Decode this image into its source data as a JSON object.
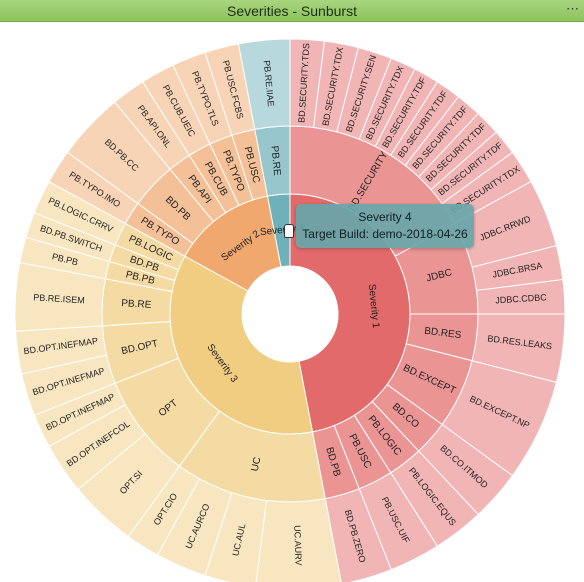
{
  "panel": {
    "title": "Severities - Sunburst",
    "menu_icon": "ellipsis-icon"
  },
  "tooltip": {
    "line1": "Severity 4",
    "line2": "Target Build: demo-2018-04-26"
  },
  "colors": {
    "header": "#9ccb72",
    "severity_1": "#e26a6a",
    "severity_2": "#f0a86e",
    "severity_3": "#f0cd80",
    "severity_4": "#6fb1ba"
  },
  "chart_data": {
    "type": "sunburst",
    "title": "Severities - Sunburst",
    "hierarchy": [
      {
        "name": "Severity 1",
        "value": 47,
        "children": [
          {
            "name": "BD.SECURITY",
            "value": 17,
            "children": [
              {
                "name": "BD.SECURITY.TDS",
                "value": 2
              },
              {
                "name": "BD.SECURITY.TDX",
                "value": 2
              },
              {
                "name": "BD.SECURITY.SEN",
                "value": 2
              },
              {
                "name": "BD.SECURITY.TDX",
                "value": 1.5
              },
              {
                "name": "BD.SECURITY.TDF",
                "value": 1.5
              },
              {
                "name": "BD.SECURITY.TDF",
                "value": 1.5
              },
              {
                "name": "BD.SECURITY.TDF",
                "value": 1.5
              },
              {
                "name": "BD.SECURITY.TDF",
                "value": 1.5
              },
              {
                "name": "BD.SECURITY.TDF",
                "value": 1.5
              },
              {
                "name": "BD.SECURITY.TDX",
                "value": 2
              }
            ]
          },
          {
            "name": "JDBC",
            "value": 8,
            "children": [
              {
                "name": "JDBC.RRWD",
                "value": 4
              },
              {
                "name": "JDBC.BRSA",
                "value": 2
              },
              {
                "name": "JDBC.CDBC",
                "value": 2
              }
            ]
          },
          {
            "name": "BD.RES",
            "value": 4,
            "children": [
              {
                "name": "BD.RES.LEAKS",
                "value": 4
              }
            ]
          },
          {
            "name": "BD.EXCEPT",
            "value": 6,
            "children": [
              {
                "name": "BD.EXCEPT.NP",
                "value": 6
              }
            ]
          },
          {
            "name": "BD.CO",
            "value": 3,
            "children": [
              {
                "name": "BD.CO.ITMOD",
                "value": 3
              }
            ]
          },
          {
            "name": "PB.LOGIC",
            "value": 3,
            "children": [
              {
                "name": "PB.LOGIC.EQUS",
                "value": 3
              }
            ]
          },
          {
            "name": "PB.USC",
            "value": 3,
            "children": [
              {
                "name": "PB.USC.UIF",
                "value": 3
              }
            ]
          },
          {
            "name": "BD.PB",
            "value": 3,
            "children": [
              {
                "name": "BD.PB.ZERO",
                "value": 3
              }
            ]
          }
        ]
      },
      {
        "name": "Severity 3",
        "value": 36,
        "children": [
          {
            "name": "UC",
            "value": 13,
            "children": [
              {
                "name": "UC.AURV",
                "value": 5
              },
              {
                "name": "UC.AUL",
                "value": 3
              },
              {
                "name": "UC.AURCO",
                "value": 3
              },
              {
                "name": "OPT.CIO",
                "value": 2
              }
            ]
          },
          {
            "name": "OPT",
            "value": 9,
            "children": [
              {
                "name": "OPT.SI",
                "value": 4
              },
              {
                "name": "BD.OPT.INEFCOL",
                "value": 3
              },
              {
                "name": "BD.OPT.INEFMAP",
                "value": 2
              }
            ]
          },
          {
            "name": "BD.OPT",
            "value": 5,
            "children": [
              {
                "name": "BD.OPT.INEFMAP",
                "value": 2.5
              },
              {
                "name": "BD.OPT.INEFMAP",
                "value": 2.5
              }
            ]
          },
          {
            "name": "PB.RE",
            "value": 4,
            "children": [
              {
                "name": "PB.RE.ISEM",
                "value": 4
              }
            ]
          },
          {
            "name": "PB.PB",
            "value": 1.5,
            "children": [
              {
                "name": "PB.PB",
                "value": 1.5
              }
            ]
          },
          {
            "name": "BD.PB",
            "value": 1.5,
            "children": [
              {
                "name": "BD.PB.SWITCH",
                "value": 1.5
              }
            ]
          },
          {
            "name": "PB.LOGIC",
            "value": 2,
            "children": [
              {
                "name": "PB.LOGIC.CRRV",
                "value": 2
              }
            ]
          }
        ]
      },
      {
        "name": "Severity 2",
        "value": 14,
        "children": [
          {
            "name": "PB.TYPO",
            "value": 2,
            "children": [
              {
                "name": "PB.TYPO.IMO",
                "value": 2
              }
            ]
          },
          {
            "name": "BD.PB",
            "value": 4,
            "children": [
              {
                "name": "BD.PB.CC",
                "value": 4
              }
            ]
          },
          {
            "name": "PB.API",
            "value": 2,
            "children": [
              {
                "name": "PB.API.ONL",
                "value": 2
              }
            ]
          },
          {
            "name": "PB.CUB",
            "value": 2,
            "children": [
              {
                "name": "PB.CUB.UEIC",
                "value": 2
              }
            ]
          },
          {
            "name": "PB.TYPO",
            "value": 2,
            "children": [
              {
                "name": "PB.TYPO.TLS",
                "value": 2
              }
            ]
          },
          {
            "name": "PB.USC",
            "value": 2,
            "children": [
              {
                "name": "PB.USC.FCBS",
                "value": 2
              }
            ]
          }
        ]
      },
      {
        "name": "Severity 4",
        "value": 3,
        "children": [
          {
            "name": "PB.RE",
            "value": 3,
            "children": [
              {
                "name": "PB.RE.IIAE",
                "value": 3
              }
            ]
          }
        ]
      }
    ]
  }
}
